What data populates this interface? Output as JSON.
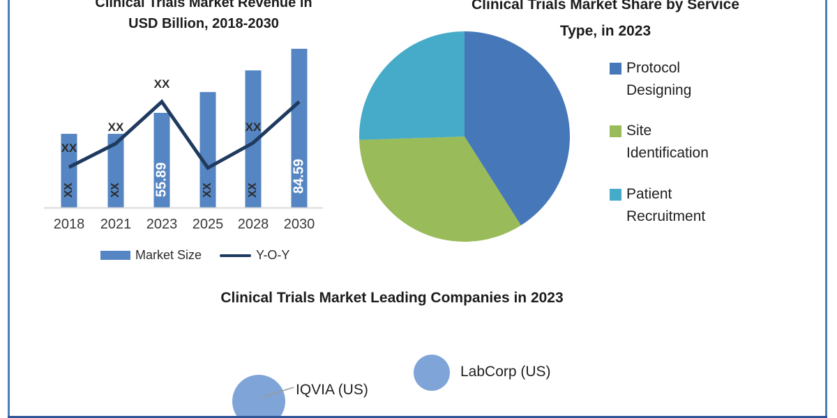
{
  "page": {
    "background": "#ffffff",
    "frame_border_color": "#4A7EBB",
    "frame_bottom_border_color": "#2F5496"
  },
  "chart_data": [
    {
      "id": "revenue",
      "type": "bar",
      "title": "Clinical Trials Market Revenue in USD Billion, 2018-2030",
      "title_lines": [
        "Clinical Trials Market Revenue in",
        "USD Billion, 2018-2030"
      ],
      "categories": [
        "2018",
        "2021",
        "2023",
        "2025",
        "2028",
        "2030"
      ],
      "series": [
        {
          "name": "Market Size",
          "chart": "bar",
          "color": "#5585C2",
          "values": [
            null,
            null,
            55.89,
            null,
            null,
            84.59
          ],
          "estimated_values": [
            46.5,
            46.5,
            55.89,
            65.2,
            74.9,
            84.59
          ],
          "value_labels": [
            "XX",
            "XX",
            "55.89",
            "XX",
            "XX",
            "84.59"
          ],
          "value_label_colors": [
            "dark",
            "dark",
            "light",
            "dark",
            "dark",
            "light"
          ]
        },
        {
          "name": "Y-O-Y",
          "chart": "line",
          "color": "#1F3A5F",
          "values": [
            null,
            null,
            null,
            null,
            null,
            null
          ],
          "value_labels": [
            "XX",
            "XX",
            "XX",
            null,
            "XX",
            null
          ]
        }
      ],
      "ylabel": "USD Billion",
      "ylim": [
        0,
        95
      ],
      "grid": false,
      "legend_position": "bottom",
      "note": "bars for XX-labeled years estimated from pixel heights"
    },
    {
      "id": "share",
      "type": "pie",
      "title": "Clinical Trials Market Share by Service Type, in 2023",
      "title_lines": [
        "Clinical Trials Market Share by Service",
        "Type, in 2023"
      ],
      "labels": [
        "Protocol Designing",
        "Site Identification",
        "Patient Recruitment"
      ],
      "legend_labels": [
        "Protocol\nDesigning",
        "Site\nIdentification",
        "Patient\nRecruitment"
      ],
      "values_pct": [
        41,
        33.5,
        25.5
      ],
      "colors": [
        "#4678B9",
        "#99BB59",
        "#46ABC8"
      ],
      "start_angle_deg": 0,
      "direction": "clockwise",
      "legend_position": "right",
      "note": "percentages estimated from slice angles; no data labels shown"
    },
    {
      "id": "companies",
      "type": "bubble",
      "title": "Clinical Trials Market Leading Companies in 2023",
      "color": "#7FA4D8",
      "points": [
        {
          "label": "IQVIA (US)",
          "radius_px": 38
        },
        {
          "label": "LabCorp (US)",
          "radius_px": 26
        }
      ],
      "note": "bubble size indicates relative company leadership; largest bubble partially clipped at bottom edge"
    }
  ]
}
